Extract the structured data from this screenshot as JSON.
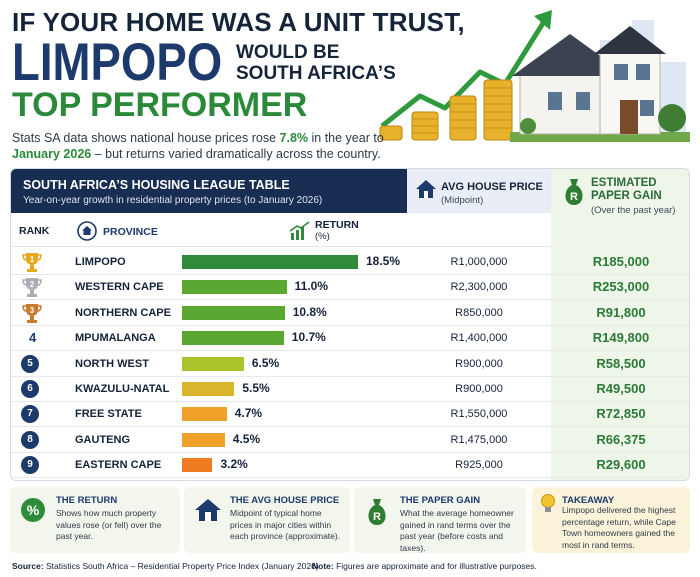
{
  "header": {
    "line1": "IF YOUR HOME WAS A UNIT TRUST,",
    "line2": "LIMPOPO",
    "line3a": "WOULD BE",
    "line3b": "SOUTH AFRICA’S",
    "line4": "TOP PERFORMER",
    "sub_pre": "Stats SA data shows national house prices rose ",
    "sub_hl1": "7.8%",
    "sub_mid": " in the year to ",
    "sub_hl2": "January 2026",
    "sub_post": " – but returns varied dramatically across the country."
  },
  "table": {
    "title": "SOUTH AFRICA’S HOUSING LEAGUE TABLE",
    "subtitle": "Year-on-year growth in residential property prices (to January 2026)",
    "rank_header": "RANK",
    "province_header": "PROVINCE",
    "return_header": "RETURN",
    "return_unit": "(%)",
    "price_header": "AVG HOUSE PRICE",
    "price_sub": "(Midpoint)",
    "gain_header": "ESTIMATED PAPER GAIN",
    "gain_sub": "(Over the past year)"
  },
  "chart_data": {
    "type": "bar",
    "title": "SOUTH AFRICA’S HOUSING LEAGUE TABLE",
    "subtitle": "Year-on-year growth in residential property prices (to January 2026)",
    "ylabel": "RETURN (%)",
    "categories": [
      "LIMPOPO",
      "WESTERN CAPE",
      "NORTHERN CAPE",
      "MPUMALANGA",
      "NORTH WEST",
      "KWAZULU-NATAL",
      "FREE STATE",
      "GAUTENG",
      "EASTERN CAPE"
    ],
    "ranks": [
      "1",
      "2",
      "3",
      "4",
      "5",
      "6",
      "7",
      "8",
      "9"
    ],
    "values": [
      18.5,
      11.0,
      10.8,
      10.7,
      6.5,
      5.5,
      4.7,
      4.5,
      3.2
    ],
    "value_labels": [
      "18.5%",
      "11.0%",
      "10.8%",
      "10.7%",
      "6.5%",
      "5.5%",
      "4.7%",
      "4.5%",
      "3.2%"
    ],
    "avg_price": [
      "R1,000,000",
      "R2,300,000",
      "R850,000",
      "R1,400,000",
      "R900,000",
      "R900,000",
      "R1,550,000",
      "R1,475,000",
      "R925,000"
    ],
    "paper_gain": [
      "R185,000",
      "R253,000",
      "R91,800",
      "R149,800",
      "R58,500",
      "R49,500",
      "R72,850",
      "R66,375",
      "R29,600"
    ],
    "bar_colors": [
      "#2f8a3c",
      "#5aa832",
      "#5aa832",
      "#5aa832",
      "#a9c42b",
      "#d8b52a",
      "#f0a12a",
      "#f0a12a",
      "#ee7a22"
    ],
    "xlim": [
      0,
      18.5
    ]
  },
  "legend": {
    "return_title": "THE RETURN",
    "return_desc": "Shows how much property values rose (or fell) over the past year.",
    "price_title": "THE AVG HOUSE PRICE",
    "price_desc": "Midpoint of typical home prices in major cities within each province (approximate).",
    "gain_title": "THE PAPER GAIN",
    "gain_desc": "What the average homeowner gained in rand terms over the past year (before costs and taxes).",
    "takeaway_title": "TAKEAWAY",
    "takeaway_desc": "Limpopo delivered the highest percentage return, while Cape Town homeowners gained the most in rand terms."
  },
  "footer": {
    "source_label": "Source:",
    "source_text": " Statistics South Africa – Residential Property Price Index (January 2026)",
    "note_label": "Note:",
    "note_text": " Figures are approximate and for illustrative purposes."
  },
  "colors": {
    "navy": "#182d52",
    "green": "#2b8a3a",
    "gold": "#e3a21a"
  },
  "icons": [
    "house-icon",
    "money-bag-icon",
    "growth-chart-icon",
    "percent-icon",
    "lightbulb-icon",
    "trophy-gold-icon",
    "trophy-silver-icon",
    "trophy-bronze-icon",
    "arrow-up-icon"
  ]
}
